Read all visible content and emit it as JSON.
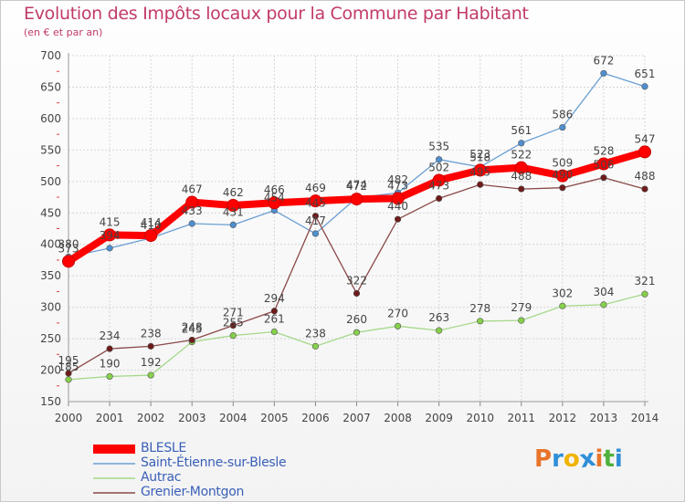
{
  "title": "Evolution des Impôts locaux pour la Commune par Habitant",
  "subtitle": "(en € et par an)",
  "brand": {
    "letters": [
      "P",
      "r",
      "o",
      "x",
      "i",
      "t",
      "i"
    ],
    "colors": [
      "#e8742a",
      "#2f8fd8",
      "#f0b400",
      "#2f8fd8",
      "#e8742a",
      "#4fb13c",
      "#2f8fd8"
    ]
  },
  "chart_data": {
    "type": "line",
    "title": "Evolution des Impôts locaux pour la Commune par Habitant",
    "subtitle": "(en € et par an)",
    "x": [
      "2000",
      "2001",
      "2002",
      "2003",
      "2004",
      "2005",
      "2006",
      "2007",
      "2008",
      "2009",
      "2010",
      "2011",
      "2012",
      "2013",
      "2014"
    ],
    "ylim": [
      150,
      700
    ],
    "yticks": [
      150,
      200,
      250,
      300,
      350,
      400,
      450,
      500,
      550,
      600,
      650,
      700
    ],
    "grid": true,
    "legend_position": "bottom-left",
    "series": [
      {
        "name": "BLESLE",
        "color": "#ff0000",
        "marker": "#ff0000",
        "values": [
          373,
          415,
          414,
          467,
          462,
          466,
          469,
          472,
          473,
          502,
          518,
          522,
          509,
          528,
          547
        ]
      },
      {
        "name": "Saint-Étienne-sur-Blesle",
        "color": "#6b9fd4",
        "marker": "#4f8fd0",
        "values": [
          380,
          394,
          410,
          433,
          431,
          454,
          417,
          474,
          482,
          535,
          523,
          561,
          586,
          672,
          651
        ]
      },
      {
        "name": "Autrac",
        "color": "#a6d88a",
        "marker": "#86d04a",
        "values": [
          185,
          190,
          192,
          245,
          255,
          261,
          238,
          260,
          270,
          263,
          278,
          279,
          302,
          304,
          321
        ]
      },
      {
        "name": "Grenier-Montgon",
        "color": "#8a4848",
        "marker": "#6e1b1b",
        "values": [
          195,
          234,
          238,
          248,
          271,
          294,
          445,
          322,
          440,
          473,
          495,
          488,
          490,
          506,
          488
        ]
      }
    ]
  }
}
